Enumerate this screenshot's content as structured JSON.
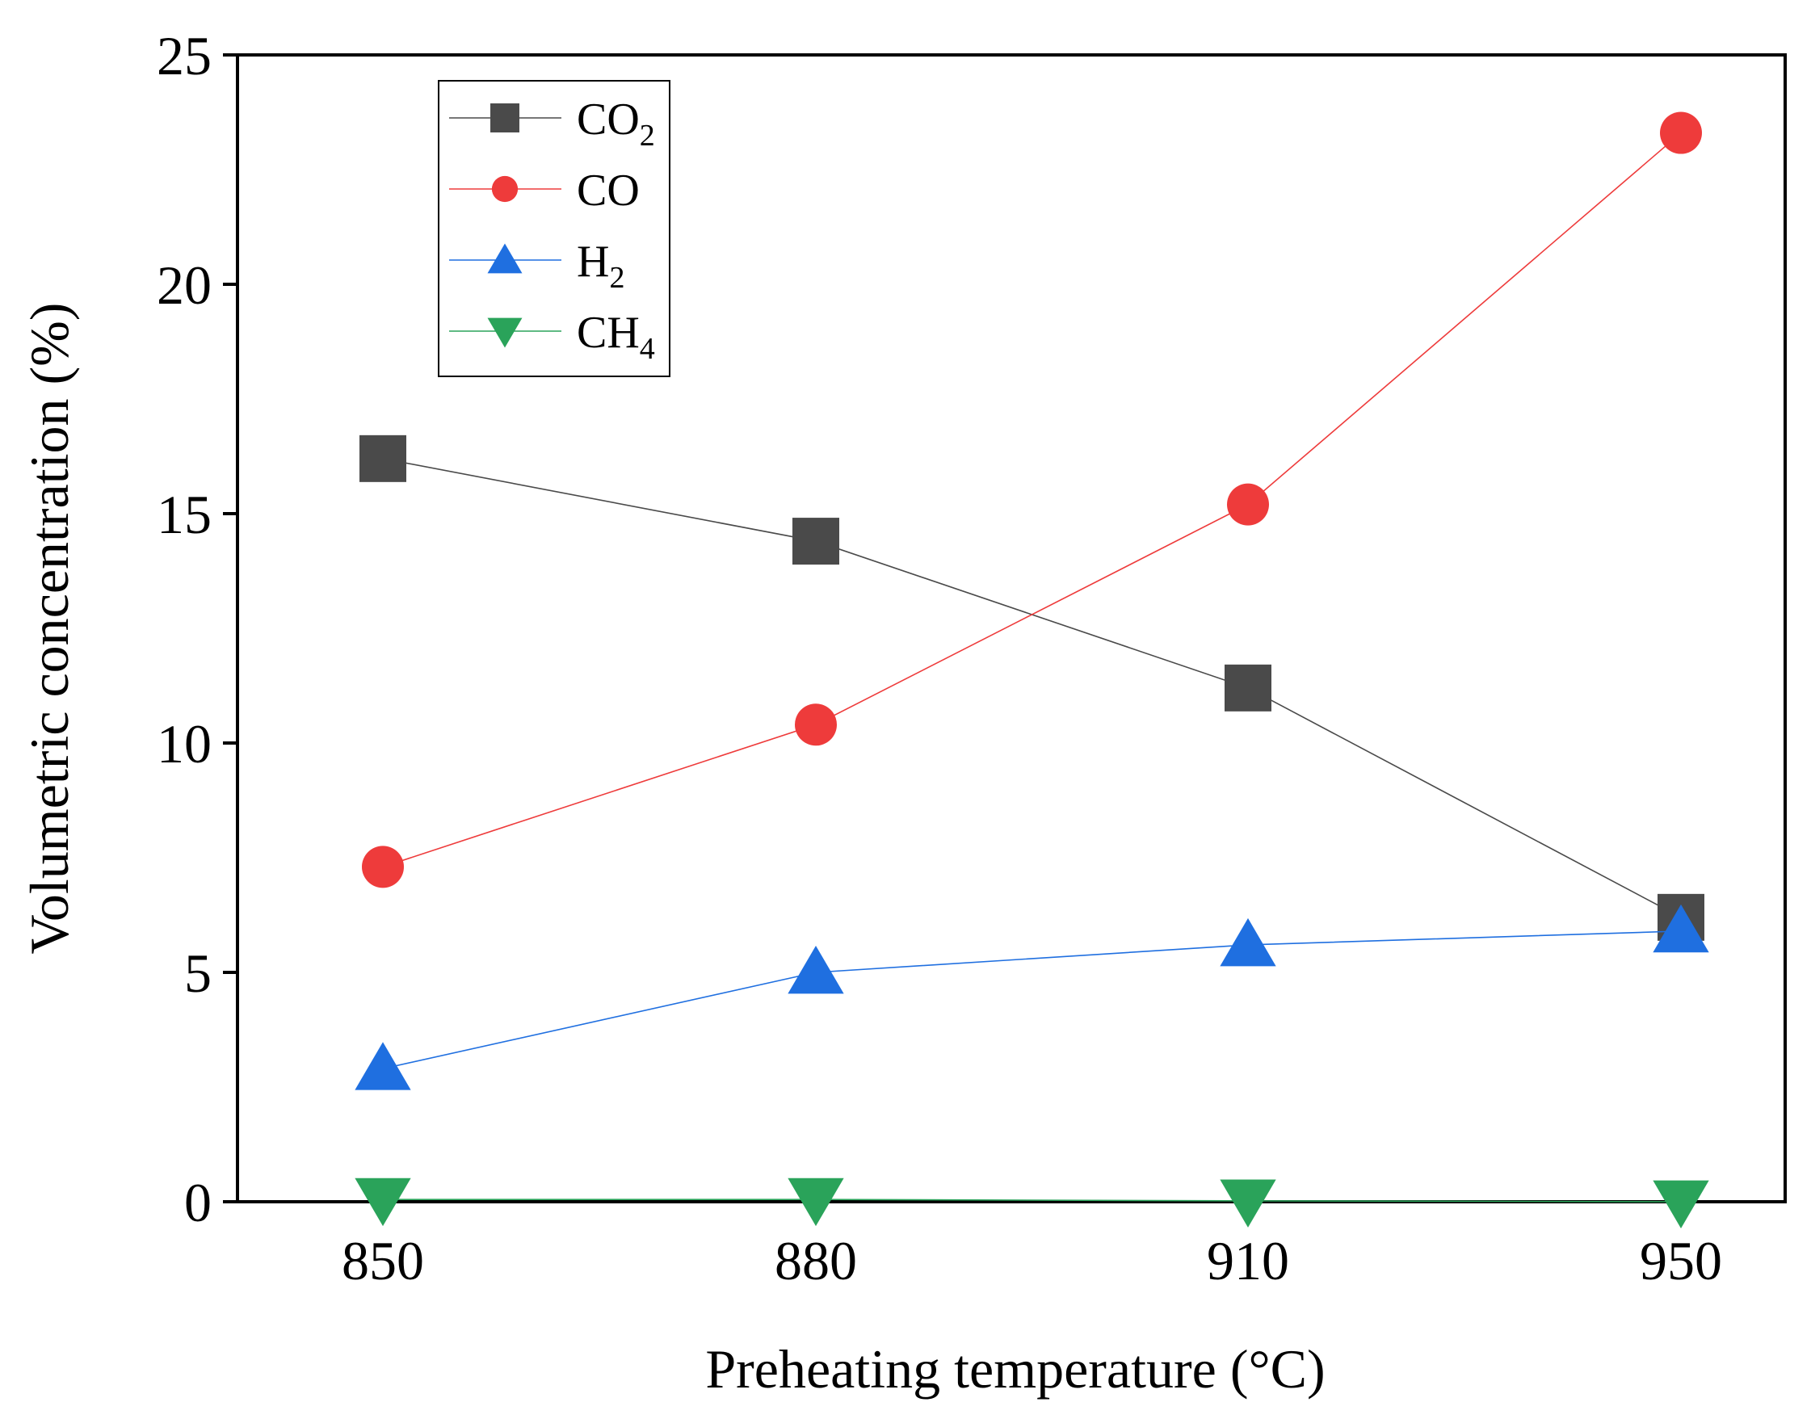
{
  "chart_data": {
    "type": "line",
    "title": "",
    "xlabel": "Preheating temperature (°C)",
    "ylabel": "Volumetric  concentration (%)",
    "x": [
      850,
      880,
      910,
      950
    ],
    "x_tick_labels": [
      "850",
      "880",
      "910",
      "950"
    ],
    "y_ticks": [
      0,
      5,
      10,
      15,
      20,
      25
    ],
    "y_tick_labels": [
      "0",
      "5",
      "10",
      "15",
      "20",
      "25"
    ],
    "ylim": [
      0,
      25
    ],
    "grid": false,
    "legend_position": "top-left",
    "series": [
      {
        "name": "CO2",
        "label_main": "CO",
        "label_sub": "2",
        "marker": "square",
        "color": "#4a4a4a",
        "values": [
          16.2,
          14.4,
          11.2,
          6.2
        ]
      },
      {
        "name": "CO",
        "label_main": "CO",
        "label_sub": "",
        "marker": "circle",
        "color": "#ee3b3b",
        "values": [
          7.3,
          10.4,
          15.2,
          23.3
        ]
      },
      {
        "name": "H2",
        "label_main": "H",
        "label_sub": "2",
        "marker": "triangle-up",
        "color": "#1f6fe0",
        "values": [
          2.9,
          5.0,
          5.6,
          5.9
        ]
      },
      {
        "name": "CH4",
        "label_main": "CH",
        "label_sub": "4",
        "marker": "triangle-down",
        "color": "#2aa35a",
        "values": [
          0.05,
          0.05,
          0.02,
          0.0
        ]
      }
    ]
  }
}
